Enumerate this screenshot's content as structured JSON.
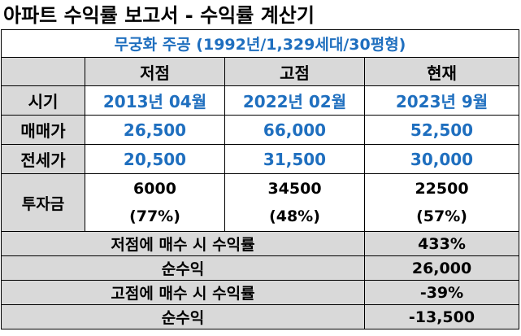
{
  "title": "아파트 수익률 보고서 - 수익률 계산기",
  "subtitle": "무궁화 주공 (1992년/1,329세대/30평형)",
  "columns": [
    "저점",
    "고점",
    "현재"
  ],
  "rows": [
    {
      "label": "시기",
      "values": [
        "2013년 04월",
        "2022년 02월",
        "2023년 9월"
      ]
    },
    {
      "label": "매매가",
      "values": [
        "26,500",
        "66,000",
        "52,500"
      ]
    },
    {
      "label": "전세가",
      "values": [
        "20,500",
        "31,500",
        "30,000"
      ]
    }
  ],
  "investment": {
    "label": "투자금",
    "amounts": [
      "6000",
      "34500",
      "22500"
    ],
    "ratios": [
      "(77%)",
      "(48%)",
      "(57%)"
    ]
  },
  "summary": [
    {
      "label": "저점에 매수 시 수익률",
      "value": "433%"
    },
    {
      "label": "순수익",
      "value": "26,000"
    },
    {
      "label": "고점에 매수 시 수익률",
      "value": "-39%"
    },
    {
      "label": "순수익",
      "value": "-13,500"
    }
  ],
  "colors": {
    "accent_blue": "#1f6fbf",
    "header_grey": "#d9d9d9"
  }
}
